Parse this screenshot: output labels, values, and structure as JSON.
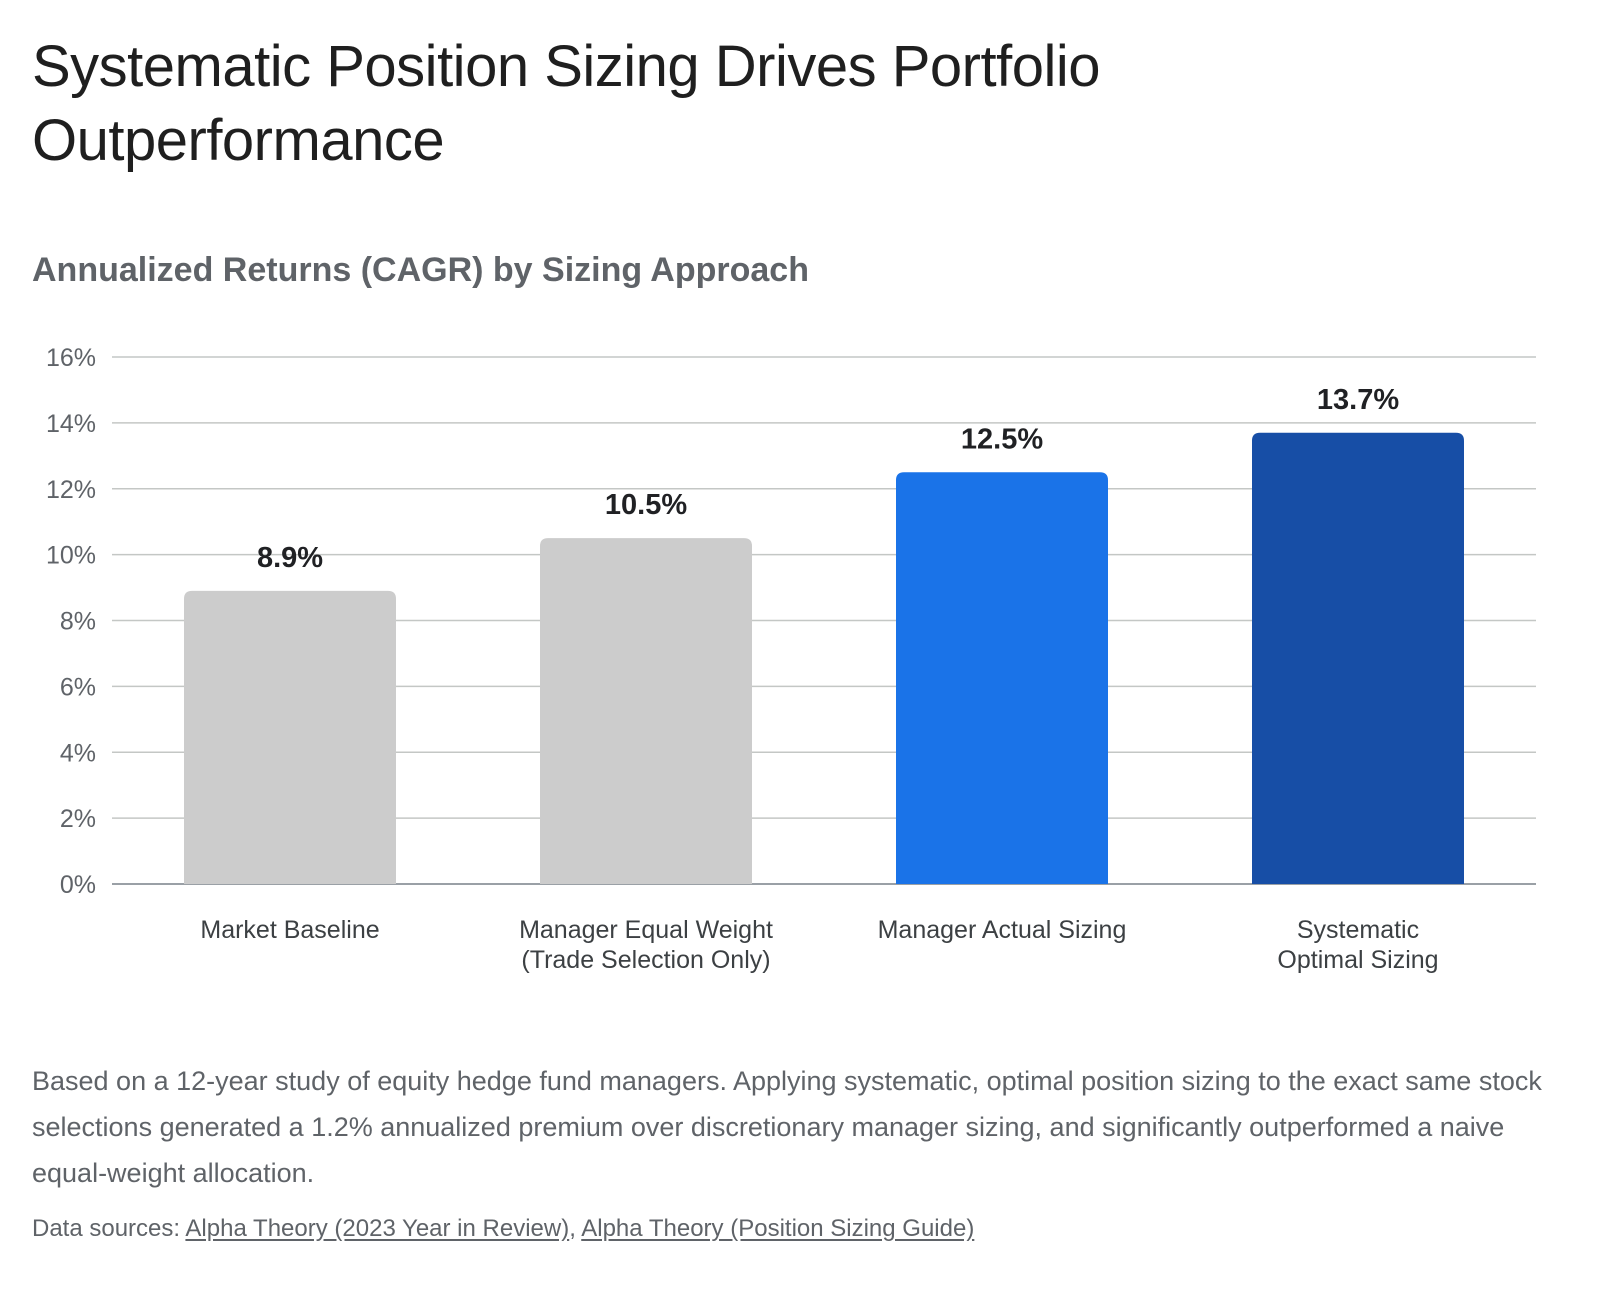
{
  "title": "Systematic Position Sizing Drives Portfolio Outperformance",
  "subtitle": "Annualized Returns (CAGR) by Sizing Approach",
  "description": "Based on a 12-year study of equity hedge fund managers. Applying systematic, optimal position sizing to the exact same stock selections generated a 1.2% annualized premium over discretionary manager sizing, and significantly outperformed a naive equal-weight allocation.",
  "sources": {
    "prefix": "Data sources:",
    "separator": ",",
    "links": [
      "Alpha Theory (2023 Year in Review)",
      "Alpha Theory (Position Sizing Guide)"
    ]
  },
  "chart_data": {
    "type": "bar",
    "title": "Annualized Returns (CAGR) by Sizing Approach",
    "xlabel": "",
    "ylabel": "",
    "categories": [
      [
        "Market Baseline"
      ],
      [
        "Manager Equal Weight",
        "(Trade Selection Only)"
      ],
      [
        "Manager Actual Sizing"
      ],
      [
        "Systematic",
        "Optimal Sizing"
      ]
    ],
    "values": [
      8.9,
      10.5,
      12.5,
      13.7
    ],
    "data_labels": [
      "8.9%",
      "10.5%",
      "12.5%",
      "13.7%"
    ],
    "colors": [
      "#cccccc",
      "#cccccc",
      "#1a73e8",
      "#174ea6"
    ],
    "ylim": [
      0,
      16
    ],
    "yticks": [
      0,
      2,
      4,
      6,
      8,
      10,
      12,
      14,
      16
    ],
    "ytick_labels": [
      "0%",
      "2%",
      "4%",
      "6%",
      "8%",
      "10%",
      "12%",
      "14%",
      "16%"
    ],
    "grid": true,
    "legend": "none"
  }
}
